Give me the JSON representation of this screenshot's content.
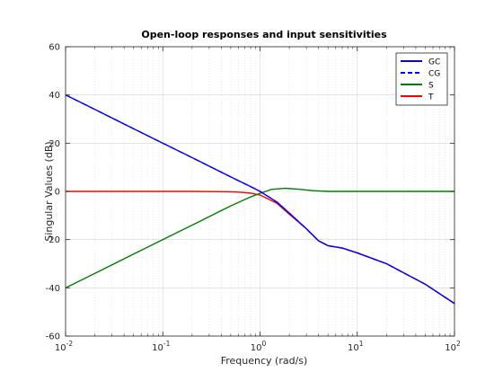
{
  "chart_data": {
    "type": "line",
    "title": "Open-loop responses and input sensitivities",
    "xlabel": "Frequency (rad/s)",
    "ylabel": "Singular Values (dB)",
    "xscale": "log",
    "xlim": [
      0.01,
      100
    ],
    "ylim": [
      -60,
      60
    ],
    "xticks": [
      {
        "value": 0.01,
        "base": "10",
        "exp": "-2"
      },
      {
        "value": 0.1,
        "base": "10",
        "exp": "-1"
      },
      {
        "value": 1,
        "base": "10",
        "exp": "0"
      },
      {
        "value": 10,
        "base": "10",
        "exp": "1"
      },
      {
        "value": 100,
        "base": "10",
        "exp": "2"
      }
    ],
    "yticks": [
      {
        "value": 60,
        "label": "60"
      },
      {
        "value": 40,
        "label": "40"
      },
      {
        "value": 20,
        "label": "20"
      },
      {
        "value": 0,
        "label": "0"
      },
      {
        "value": -20,
        "label": "-20"
      },
      {
        "value": -40,
        "label": "-40"
      },
      {
        "value": -60,
        "label": "-60"
      }
    ],
    "grid": true,
    "legend_position": "top-right",
    "series": [
      {
        "name": "GC",
        "color": "#0000ff",
        "dash": "solid",
        "x": [
          0.01,
          0.02,
          0.05,
          0.1,
          0.2,
          0.5,
          0.8,
          1,
          1.5,
          2,
          3,
          4,
          5,
          7,
          10,
          20,
          50,
          100
        ],
        "y": [
          40,
          34,
          26,
          20,
          14,
          6,
          2,
          0,
          -4.5,
          -9,
          -15.5,
          -20.5,
          -22.5,
          -23.5,
          -25.5,
          -30,
          -38.5,
          -46.5
        ]
      },
      {
        "name": "CG",
        "color": "#0000ff",
        "dash": "dashed",
        "x": [
          0.01,
          0.02,
          0.05,
          0.1,
          0.2,
          0.5,
          0.8,
          1,
          1.5,
          2,
          3,
          4,
          5,
          7,
          10,
          20,
          50,
          100
        ],
        "y": [
          40,
          34,
          26,
          20,
          14,
          6,
          2,
          0,
          -4.5,
          -9,
          -15.5,
          -20.5,
          -22.5,
          -23.5,
          -25.5,
          -30,
          -38.5,
          -46.5
        ]
      },
      {
        "name": "S",
        "color": "#008000",
        "dash": "solid",
        "x": [
          0.01,
          0.02,
          0.05,
          0.1,
          0.2,
          0.5,
          0.8,
          1,
          1.3,
          1.8,
          2.5,
          3.5,
          5,
          10,
          20,
          50,
          100
        ],
        "y": [
          -40,
          -34,
          -26,
          -20,
          -14,
          -6,
          -2.3,
          -0.8,
          0.8,
          1.3,
          0.9,
          0.3,
          0,
          0,
          0,
          0,
          0
        ]
      },
      {
        "name": "T",
        "color": "#ff0000",
        "dash": "solid",
        "x": [
          0.01,
          0.05,
          0.1,
          0.2,
          0.4,
          0.6,
          0.8,
          1,
          1.5,
          2,
          3,
          4,
          5,
          7,
          10,
          20,
          50,
          100
        ],
        "y": [
          0,
          0,
          0,
          0,
          -0.1,
          -0.3,
          -0.7,
          -1.5,
          -5,
          -9.5,
          -15.5,
          -20.5,
          -22.5,
          -23.5,
          -25.5,
          -30,
          -38.5,
          -46.5
        ]
      }
    ]
  }
}
